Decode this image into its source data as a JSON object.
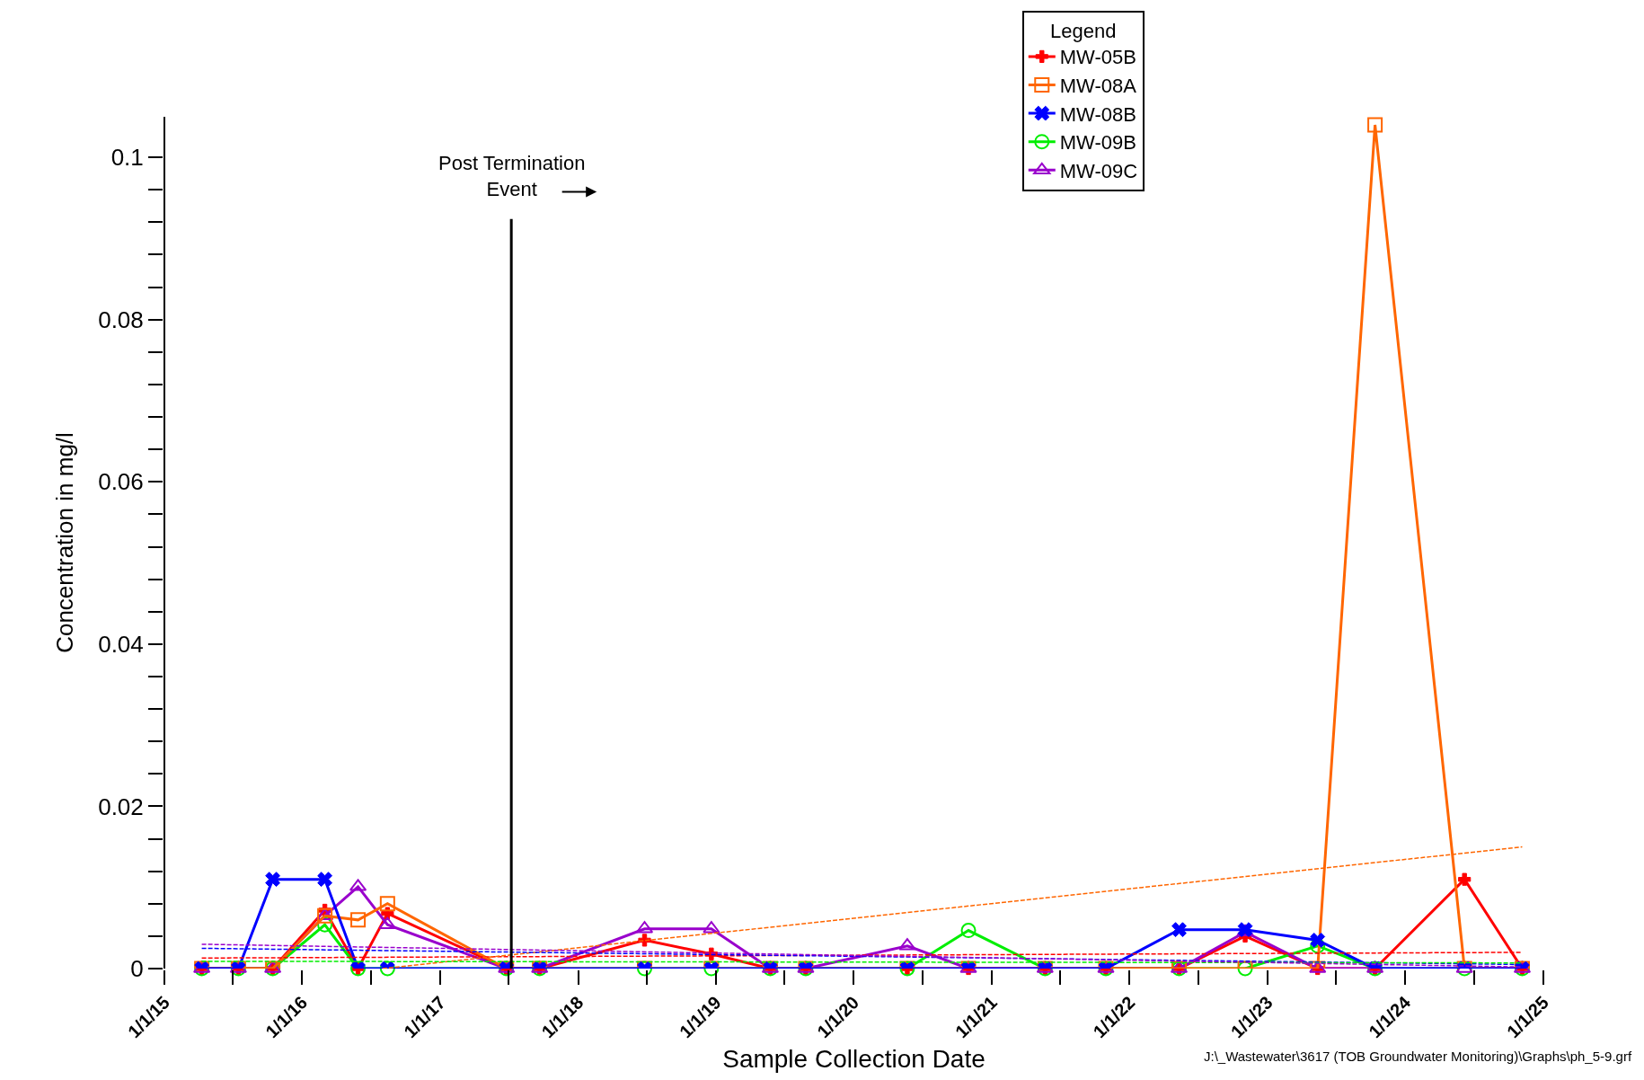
{
  "chart_data": {
    "type": "line",
    "xlabel": "Sample Collection Date",
    "ylabel": "Concentration in mg/l",
    "legend_title": "Legend",
    "legend": "top right",
    "x": [
      "2015-04-10",
      "2015-07-16",
      "2015-10-15",
      "2016-03-01",
      "2016-05-28",
      "2016-08-14",
      "2017-06-25",
      "2017-09-21",
      "2018-06-26",
      "2018-12-20",
      "2019-05-25",
      "2019-08-27",
      "2020-05-22",
      "2020-10-31",
      "2021-05-22",
      "2021-10-30",
      "2022-05-12",
      "2022-11-03",
      "2023-05-14",
      "2023-10-13",
      "2024-06-06",
      "2024-11-06"
    ],
    "series": [
      {
        "name": "MW-05B",
        "color": "#ff0000",
        "marker": "cross",
        "values": [
          0,
          0,
          0,
          0.0072,
          0,
          0.0068,
          0,
          0,
          0.0035,
          0.0018,
          0,
          0,
          0,
          0,
          0,
          0,
          0,
          0.004,
          0,
          0,
          0.011,
          0
        ]
      },
      {
        "name": "MW-08A",
        "color": "#ff6600",
        "marker": "square",
        "values": [
          0,
          0,
          0,
          0.0065,
          0.006,
          0.008,
          0,
          0,
          0,
          0,
          0,
          0,
          0,
          0,
          0,
          0,
          0,
          0,
          0,
          0.104,
          0,
          0
        ]
      },
      {
        "name": "MW-08B",
        "color": "#0000ff",
        "marker": "x",
        "values": [
          0,
          0,
          0.011,
          0.011,
          0,
          0,
          0,
          0,
          0,
          0,
          0,
          0,
          0,
          0,
          0,
          0,
          0.0048,
          0.0048,
          0.0035,
          0,
          0,
          0
        ]
      },
      {
        "name": "MW-09B",
        "color": "#00ee00",
        "marker": "circle",
        "values": [
          0,
          0,
          0,
          0.0054,
          0,
          0,
          0,
          0,
          0,
          0,
          0,
          0,
          0,
          0.0047,
          0,
          0,
          0,
          0,
          0.0028,
          0,
          0,
          0
        ]
      },
      {
        "name": "MW-09C",
        "color": "#9900cc",
        "marker": "triangle",
        "values": [
          0,
          0,
          0,
          0.0065,
          0.0101,
          0.0054,
          0,
          0,
          0.0049,
          0.0049,
          0,
          0,
          0.0028,
          0,
          0,
          0,
          0,
          0.0045,
          0,
          0,
          0,
          0
        ]
      },
      {
        "color": "#ff0000",
        "line_style": "dashed",
        "marker": "none",
        "x": [
          "2015-04-10",
          "2024-11-06"
        ],
        "values": [
          0.0013,
          0.002
        ]
      },
      {
        "color": "#ff6600",
        "line_style": "dashed",
        "marker": "none",
        "x": [
          "2016-08-01",
          "2024-11-06"
        ],
        "values": [
          0,
          0.015
        ]
      },
      {
        "color": "#0000ff",
        "line_style": "dashed",
        "marker": "none",
        "x": [
          "2015-04-10",
          "2024-11-06"
        ],
        "values": [
          0.0025,
          0.0005
        ]
      },
      {
        "color": "#00ee00",
        "line_style": "dashed",
        "marker": "none",
        "x": [
          "2015-04-10",
          "2024-11-06"
        ],
        "values": [
          0.0009,
          0.0007
        ]
      },
      {
        "color": "#9900cc",
        "line_style": "dashed",
        "marker": "none",
        "x": [
          "2015-04-10",
          "2024-11-06"
        ],
        "values": [
          0.003,
          0.0002
        ]
      }
    ],
    "xlim": [
      "2015-01-01",
      "2025-01-01"
    ],
    "xticks": [
      {
        "value": "2015-01-01",
        "label": "1/1/15"
      },
      {
        "value": "2015-07-01",
        "label": null
      },
      {
        "value": "2016-01-01",
        "label": "1/1/16"
      },
      {
        "value": "2016-07-01",
        "label": null
      },
      {
        "value": "2017-01-01",
        "label": "1/1/17"
      },
      {
        "value": "2017-07-01",
        "label": null
      },
      {
        "value": "2018-01-01",
        "label": "1/1/18"
      },
      {
        "value": "2018-07-01",
        "label": null
      },
      {
        "value": "2019-01-01",
        "label": "1/1/19"
      },
      {
        "value": "2019-07-01",
        "label": null
      },
      {
        "value": "2020-01-01",
        "label": "1/1/20"
      },
      {
        "value": "2020-07-01",
        "label": null
      },
      {
        "value": "2021-01-01",
        "label": "1/1/21"
      },
      {
        "value": "2021-07-01",
        "label": null
      },
      {
        "value": "2022-01-01",
        "label": "1/1/22"
      },
      {
        "value": "2022-07-01",
        "label": null
      },
      {
        "value": "2023-01-01",
        "label": "1/1/23"
      },
      {
        "value": "2023-07-01",
        "label": null
      },
      {
        "value": "2024-01-01",
        "label": "1/1/24"
      },
      {
        "value": "2024-07-01",
        "label": null
      },
      {
        "value": "2025-01-01",
        "label": "1/1/25"
      }
    ],
    "ylim": [
      0,
      0.105
    ],
    "yticks": [
      0,
      {
        "value": 0.004,
        "label": null
      },
      {
        "value": 0.008,
        "label": null
      },
      {
        "value": 0.012,
        "label": null
      },
      {
        "value": 0.016,
        "label": null
      },
      0.02,
      {
        "value": 0.024,
        "label": null
      },
      {
        "value": 0.028,
        "label": null
      },
      {
        "value": 0.032,
        "label": null
      },
      {
        "value": 0.036,
        "label": null
      },
      0.04,
      {
        "value": 0.044,
        "label": null
      },
      {
        "value": 0.048,
        "label": null
      },
      {
        "value": 0.052,
        "label": null
      },
      {
        "value": 0.056,
        "label": null
      },
      0.06,
      {
        "value": 0.064,
        "label": null
      },
      {
        "value": 0.068,
        "label": null
      },
      {
        "value": 0.072,
        "label": null
      },
      {
        "value": 0.076,
        "label": null
      },
      0.08,
      {
        "value": 0.084,
        "label": null
      },
      {
        "value": 0.088,
        "label": null
      },
      {
        "value": 0.092,
        "label": null
      },
      {
        "value": 0.096,
        "label": null
      },
      0.1
    ],
    "ref_lines": [
      {
        "axis": "x",
        "value": "2017-07-08",
        "label": "Post Termination\nEvent",
        "color": "#000000",
        "line_style": "solid"
      }
    ],
    "annotations": [
      "J:\\_Wastewater\\3617 (TOB Groundwater Monitoring)\\Graphs\\ph_5-9.grf"
    ]
  }
}
